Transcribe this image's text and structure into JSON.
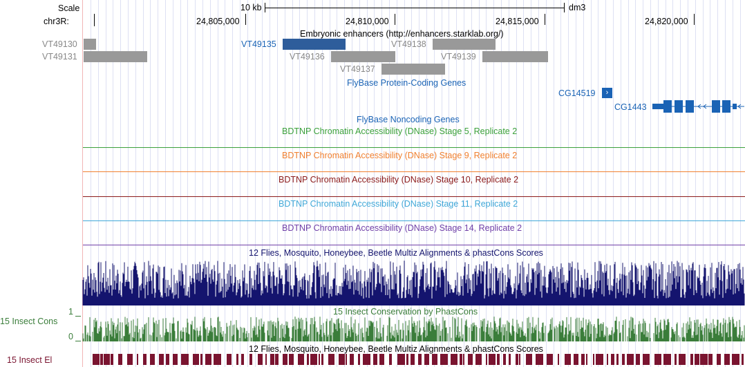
{
  "scale_row": {
    "label": "Scale",
    "bar_label": "10 kb",
    "assembly": "dm3"
  },
  "position_row": {
    "label": "chr3R:",
    "ticks": [
      "24,805,000",
      "24,810,000",
      "24,815,000",
      "24,820,000"
    ]
  },
  "tracks": {
    "enhancers": {
      "title": "Embryonic enhancers (http://enhancers.starklab.org/)",
      "items": [
        {
          "name": "VT49130",
          "highlighted": false
        },
        {
          "name": "VT49131",
          "highlighted": false
        },
        {
          "name": "VT49135",
          "highlighted": true
        },
        {
          "name": "VT49136",
          "highlighted": false
        },
        {
          "name": "VT49137",
          "highlighted": false
        },
        {
          "name": "VT49138",
          "highlighted": false
        },
        {
          "name": "VT49139",
          "highlighted": false
        }
      ]
    },
    "protein_coding": {
      "title": "FlyBase Protein-Coding Genes",
      "genes": [
        "CG14519",
        "CG1443"
      ]
    },
    "noncoding": {
      "title": "FlyBase Noncoding Genes"
    },
    "dnase": [
      {
        "title": "BDTNP Chromatin Accessibility (DNase) Stage 5, Replicate 2",
        "color": "#3aa03a"
      },
      {
        "title": "BDTNP Chromatin Accessibility (DNase) Stage 9, Replicate 2",
        "color": "#f08030"
      },
      {
        "title": "BDTNP Chromatin Accessibility (DNase) Stage 10, Replicate 2",
        "color": "#8b1a1a"
      },
      {
        "title": "BDTNP Chromatin Accessibility (DNase) Stage 11, Replicate 2",
        "color": "#40a8d8"
      },
      {
        "title": "BDTNP Chromatin Accessibility (DNase) Stage 14, Replicate 2",
        "color": "#7040a8"
      }
    ],
    "multiz": {
      "title": "12 Flies, Mosquito, Honeybee, Beetle Multiz Alignments & phastCons Scores",
      "color": "#14146e"
    },
    "phastcons": {
      "title": "15 Insect Conservation by PhastCons",
      "side_label": "15 Insect Cons",
      "y_max": "1",
      "y_min": "0",
      "color": "#3a7d3a"
    },
    "elements": {
      "title": "12 Flies, Mosquito, Honeybee, Beetle Multiz Alignments & phastCons Scores",
      "side_label": "15 Insect El",
      "color": "#7a1430"
    }
  }
}
